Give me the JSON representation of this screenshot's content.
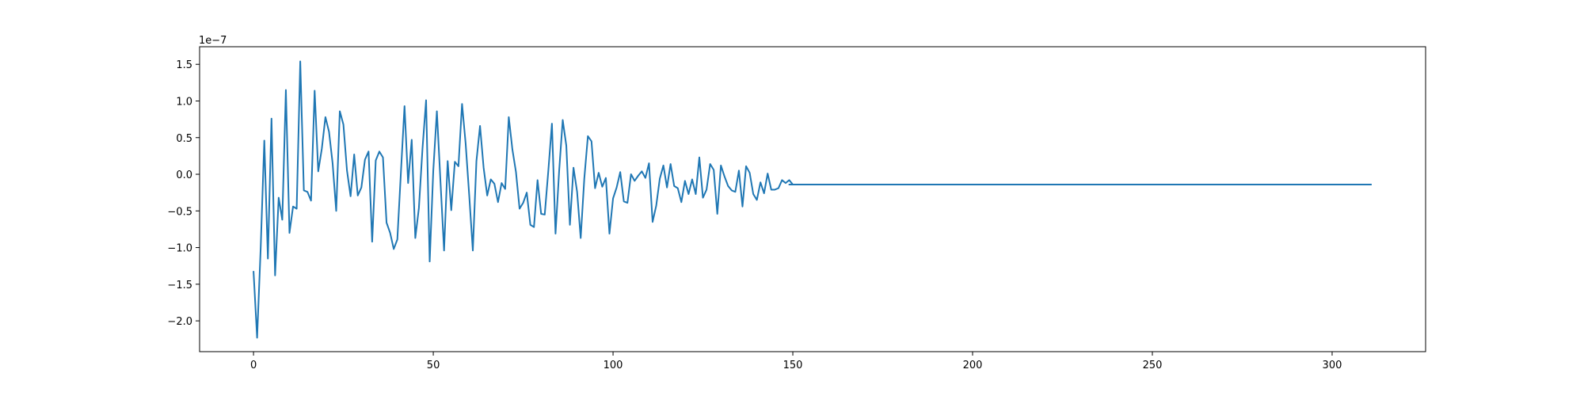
{
  "chart_data": {
    "type": "line",
    "title": "",
    "xlabel": "",
    "ylabel": "",
    "y_offset_text": "1e−7",
    "xlim": [
      -15,
      326
    ],
    "ylim": [
      -2.42,
      1.74
    ],
    "x_ticks": [
      0,
      50,
      100,
      150,
      200,
      250,
      300
    ],
    "x_tick_labels": [
      "0",
      "50",
      "100",
      "150",
      "200",
      "250",
      "300"
    ],
    "y_ticks": [
      -2.0,
      -1.5,
      -1.0,
      -0.5,
      0.0,
      0.5,
      1.0,
      1.5
    ],
    "y_tick_labels": [
      "−2.0",
      "−1.5",
      "−1.0",
      "−0.5",
      "0.0",
      "0.5",
      "1.0",
      "1.5"
    ],
    "grid": false,
    "legend": "none",
    "colors": {
      "line": "#1f77b4"
    },
    "series": [
      {
        "y": [
          -1.32,
          -2.23,
          -1.0,
          0.46,
          -1.15,
          0.76,
          -1.38,
          -0.32,
          -0.62,
          1.15,
          -0.8,
          -0.44,
          -0.47,
          1.54,
          -0.22,
          -0.24,
          -0.36,
          1.14,
          0.04,
          0.35,
          0.78,
          0.58,
          0.15,
          -0.5,
          0.86,
          0.68,
          0.05,
          -0.3,
          0.27,
          -0.29,
          -0.18,
          0.2,
          0.31,
          -0.92,
          0.19,
          0.31,
          0.23,
          -0.66,
          -0.8,
          -1.02,
          -0.89,
          0.03,
          0.93,
          -0.12,
          0.47,
          -0.87,
          -0.46,
          0.35,
          1.01,
          -1.19,
          0.05,
          0.86,
          -0.1,
          -1.04,
          0.18,
          -0.49,
          0.17,
          0.11,
          0.96,
          0.42,
          -0.29,
          -1.04,
          0.18,
          0.66,
          0.09,
          -0.29,
          -0.07,
          -0.13,
          -0.38,
          -0.12,
          -0.2,
          0.78,
          0.34,
          0.03,
          -0.47,
          -0.39,
          -0.25,
          -0.69,
          -0.72,
          -0.08,
          -0.54,
          -0.55,
          0.05,
          0.69,
          -0.81,
          0.04,
          0.74,
          0.39,
          -0.69,
          0.09,
          -0.24,
          -0.87,
          -0.06,
          0.52,
          0.45,
          -0.19,
          0.02,
          -0.17,
          -0.05,
          -0.81,
          -0.33,
          -0.18,
          0.03,
          -0.37,
          -0.39,
          0.0,
          -0.09,
          -0.02,
          0.04,
          -0.05,
          0.15,
          -0.65,
          -0.43,
          -0.06,
          0.12,
          -0.18,
          0.14,
          -0.16,
          -0.19,
          -0.38,
          -0.09,
          -0.27,
          -0.07,
          -0.27,
          0.23,
          -0.32,
          -0.21,
          0.14,
          0.06,
          -0.54,
          0.12,
          -0.03,
          -0.16,
          -0.22,
          -0.24,
          0.05,
          -0.44,
          0.11,
          0.02,
          -0.27,
          -0.35,
          -0.11,
          -0.26,
          0.01,
          -0.21,
          -0.21,
          -0.19,
          -0.08,
          -0.12,
          -0.08,
          -0.14
        ]
      }
    ],
    "flat_tail": {
      "from_x": 149,
      "to_x": 311,
      "y": -0.14
    }
  }
}
